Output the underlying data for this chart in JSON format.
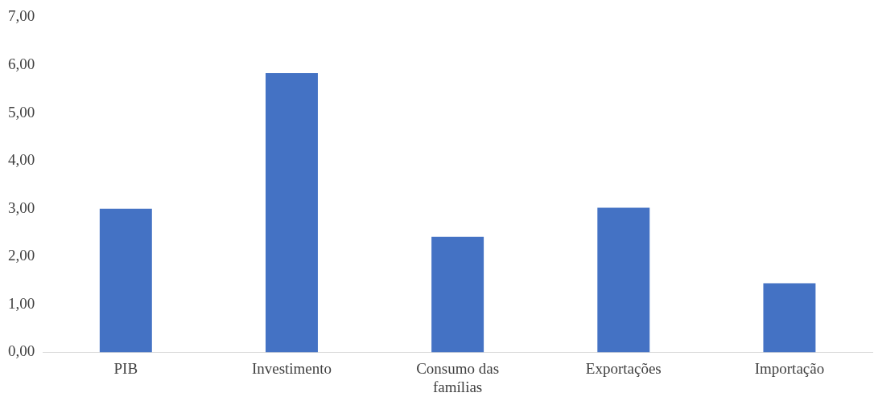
{
  "chart_data": {
    "type": "bar",
    "categories": [
      "PIB",
      "Investimento",
      "Consumo das famílias",
      "Exportações",
      "Importação"
    ],
    "values": [
      3.0,
      5.83,
      2.41,
      3.02,
      1.44
    ],
    "color": "#4472c4",
    "ylim": [
      0,
      7
    ],
    "yticks": [
      {
        "value": 0,
        "label": "0,00"
      },
      {
        "value": 1,
        "label": "1,00"
      },
      {
        "value": 2,
        "label": "2,00"
      },
      {
        "value": 3,
        "label": "3,00"
      },
      {
        "value": 4,
        "label": "4,00"
      },
      {
        "value": 5,
        "label": "5,00"
      },
      {
        "value": 6,
        "label": "6,00"
      },
      {
        "value": 7,
        "label": "7,00"
      }
    ],
    "grid": false,
    "legend": false
  }
}
